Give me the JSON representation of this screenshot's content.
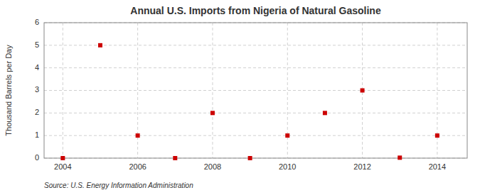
{
  "chart_data": {
    "type": "scatter",
    "title": "Annual U.S. Imports from Nigeria of Natural Gasoline",
    "ylabel": "Thousand Barrels per Day",
    "annotations": [
      "Source: U.S. Energy Information Administration"
    ],
    "x": [
      2004,
      2005,
      2006,
      2007,
      2008,
      2009,
      2010,
      2011,
      2012,
      2013,
      2014
    ],
    "values": [
      0,
      5,
      1,
      0,
      2,
      0,
      1,
      2,
      3,
      0.02,
      1
    ],
    "color": "#cc0000",
    "marker": "square",
    "xlim": [
      2003.5,
      2014.8
    ],
    "ylim": [
      0,
      6
    ],
    "xticks": [
      2004,
      2006,
      2008,
      2010,
      2012,
      2014
    ],
    "yticks": [
      0,
      1,
      2,
      3,
      4,
      5,
      6
    ],
    "grid": true
  }
}
